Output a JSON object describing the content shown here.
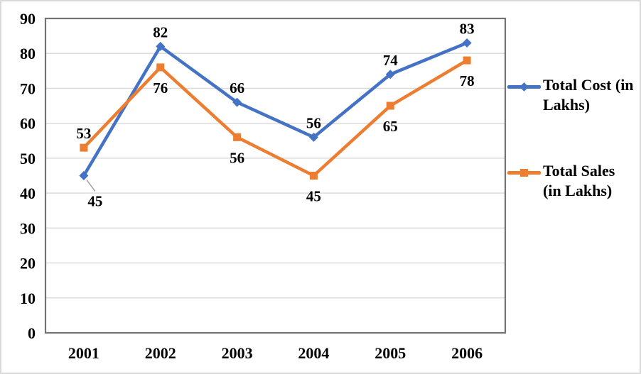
{
  "chart_data": {
    "type": "line",
    "title": "",
    "xlabel": "",
    "ylabel": "",
    "categories": [
      "2001",
      "2002",
      "2003",
      "2004",
      "2005",
      "2006"
    ],
    "series": [
      {
        "name": "Total Cost (in Lakhs)",
        "values": [
          45,
          82,
          66,
          56,
          74,
          83
        ],
        "color": "#4472C4",
        "marker": "diamond",
        "label_positions": [
          "below-leader",
          "above",
          "above",
          "above",
          "above",
          "above"
        ]
      },
      {
        "name": "Total Sales (in Lakhs)",
        "values": [
          53,
          76,
          56,
          45,
          65,
          78
        ],
        "color": "#ED7D31",
        "marker": "square",
        "label_positions": [
          "above",
          "below",
          "below",
          "below",
          "below",
          "below"
        ]
      }
    ],
    "ylim": [
      0,
      90
    ],
    "ytick_step": 10,
    "grid": true,
    "legend_position": "right",
    "colors": {
      "grid": "#d9d9d9",
      "plot_border": "#737373",
      "text": "#000000",
      "leader_line": "#a6a6a6",
      "frame_border": "#d9d9d9",
      "background": "#ffffff"
    }
  }
}
